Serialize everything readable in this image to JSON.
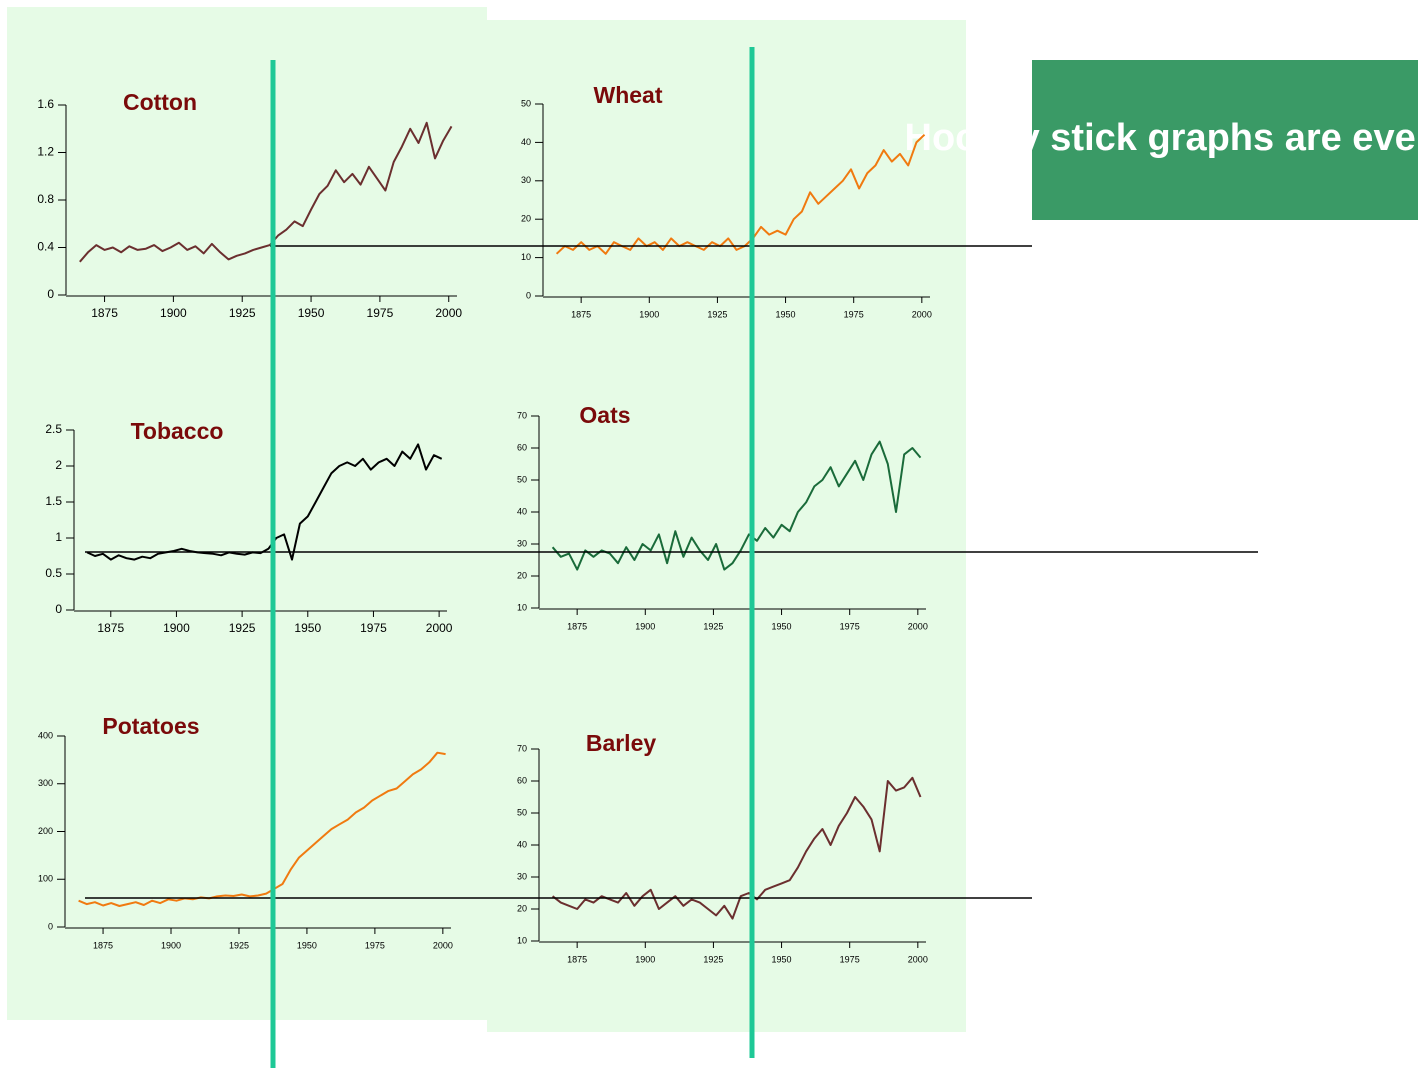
{
  "callout": "Hockey stick graphs are everywhere",
  "chart_data": [
    {
      "type": "line",
      "title": "Cotton",
      "xlim": [
        1861,
        2003
      ],
      "ylim": [
        0,
        1.6
      ],
      "xticks": [
        1875,
        1900,
        1925,
        1950,
        1975,
        2000
      ],
      "yticks": [
        0,
        0.4,
        0.8,
        1.2,
        1.6
      ],
      "x": [
        1866,
        1869,
        1872,
        1875,
        1878,
        1881,
        1884,
        1887,
        1890,
        1893,
        1896,
        1899,
        1902,
        1905,
        1908,
        1911,
        1914,
        1917,
        1920,
        1923,
        1926,
        1929,
        1932,
        1935,
        1938,
        1941,
        1944,
        1947,
        1950,
        1953,
        1956,
        1959,
        1962,
        1965,
        1968,
        1971,
        1974,
        1977,
        1980,
        1983,
        1986,
        1989,
        1992,
        1995,
        1998,
        2001
      ],
      "series": [
        {
          "color": "#6b2f2f",
          "values": [
            0.28,
            0.36,
            0.42,
            0.38,
            0.4,
            0.36,
            0.41,
            0.38,
            0.39,
            0.42,
            0.37,
            0.4,
            0.44,
            0.38,
            0.41,
            0.35,
            0.43,
            0.36,
            0.3,
            0.33,
            0.35,
            0.38,
            0.4,
            0.42,
            0.5,
            0.55,
            0.62,
            0.58,
            0.72,
            0.85,
            0.92,
            1.05,
            0.95,
            1.02,
            0.93,
            1.08,
            0.98,
            0.88,
            1.12,
            1.25,
            1.4,
            1.28,
            1.45,
            1.15,
            1.3,
            1.42
          ]
        }
      ]
    },
    {
      "type": "line",
      "title": "Wheat",
      "xlim": [
        1861,
        2003
      ],
      "ylim": [
        0,
        50
      ],
      "xticks": [
        1875,
        1900,
        1925,
        1950,
        1975,
        2000
      ],
      "yticks": [
        0,
        10,
        20,
        30,
        40,
        50
      ],
      "x": [
        1866,
        1869,
        1872,
        1875,
        1878,
        1881,
        1884,
        1887,
        1890,
        1893,
        1896,
        1899,
        1902,
        1905,
        1908,
        1911,
        1914,
        1917,
        1920,
        1923,
        1926,
        1929,
        1932,
        1935,
        1938,
        1941,
        1944,
        1947,
        1950,
        1953,
        1956,
        1959,
        1962,
        1965,
        1968,
        1971,
        1974,
        1977,
        1980,
        1983,
        1986,
        1989,
        1992,
        1995,
        1998,
        2001
      ],
      "series": [
        {
          "color": "#f07a10",
          "values": [
            11,
            13,
            12,
            14,
            12,
            13,
            11,
            14,
            13,
            12,
            15,
            13,
            14,
            12,
            15,
            13,
            14,
            13,
            12,
            14,
            13,
            15,
            12,
            13,
            15,
            18,
            16,
            17,
            16,
            20,
            22,
            27,
            24,
            26,
            28,
            30,
            33,
            28,
            32,
            34,
            38,
            35,
            37,
            34,
            40,
            42
          ]
        }
      ]
    },
    {
      "type": "line",
      "title": "Tobacco",
      "xlim": [
        1861,
        2003
      ],
      "ylim": [
        0,
        2.5
      ],
      "xticks": [
        1875,
        1900,
        1925,
        1950,
        1975,
        2000
      ],
      "yticks": [
        0,
        0.5,
        1,
        1.5,
        2,
        2.5
      ],
      "x": [
        1866,
        1869,
        1872,
        1875,
        1878,
        1881,
        1884,
        1887,
        1890,
        1893,
        1896,
        1899,
        1902,
        1905,
        1908,
        1911,
        1914,
        1917,
        1920,
        1923,
        1926,
        1929,
        1932,
        1935,
        1938,
        1941,
        1944,
        1947,
        1950,
        1953,
        1956,
        1959,
        1962,
        1965,
        1968,
        1971,
        1974,
        1977,
        1980,
        1983,
        1986,
        1989,
        1992,
        1995,
        1998,
        2001
      ],
      "series": [
        {
          "color": "#000000",
          "values": [
            0.8,
            0.75,
            0.78,
            0.7,
            0.76,
            0.72,
            0.7,
            0.74,
            0.72,
            0.78,
            0.8,
            0.82,
            0.85,
            0.82,
            0.8,
            0.79,
            0.78,
            0.76,
            0.8,
            0.78,
            0.77,
            0.8,
            0.79,
            0.85,
            1.0,
            1.05,
            0.7,
            1.2,
            1.3,
            1.5,
            1.7,
            1.9,
            2.0,
            2.05,
            2.0,
            2.1,
            1.95,
            2.05,
            2.1,
            2.0,
            2.2,
            2.1,
            2.3,
            1.95,
            2.15,
            2.1
          ]
        }
      ]
    },
    {
      "type": "line",
      "title": "Oats",
      "xlim": [
        1861,
        2003
      ],
      "ylim": [
        10,
        70
      ],
      "xticks": [
        1875,
        1900,
        1925,
        1950,
        1975,
        2000
      ],
      "yticks": [
        10,
        20,
        30,
        40,
        50,
        60,
        70
      ],
      "x": [
        1866,
        1869,
        1872,
        1875,
        1878,
        1881,
        1884,
        1887,
        1890,
        1893,
        1896,
        1899,
        1902,
        1905,
        1908,
        1911,
        1914,
        1917,
        1920,
        1923,
        1926,
        1929,
        1932,
        1935,
        1938,
        1941,
        1944,
        1947,
        1950,
        1953,
        1956,
        1959,
        1962,
        1965,
        1968,
        1971,
        1974,
        1977,
        1980,
        1983,
        1986,
        1989,
        1992,
        1995,
        1998,
        2001
      ],
      "series": [
        {
          "color": "#1a6b3a",
          "values": [
            29,
            26,
            27,
            22,
            28,
            26,
            28,
            27,
            24,
            29,
            25,
            30,
            28,
            33,
            24,
            34,
            26,
            32,
            28,
            25,
            30,
            22,
            24,
            28,
            33,
            31,
            35,
            32,
            36,
            34,
            40,
            43,
            48,
            50,
            54,
            48,
            52,
            56,
            50,
            58,
            62,
            55,
            40,
            58,
            60,
            57
          ]
        }
      ]
    },
    {
      "type": "line",
      "title": "Potatoes",
      "xlim": [
        1861,
        2003
      ],
      "ylim": [
        0,
        400
      ],
      "xticks": [
        1875,
        1900,
        1925,
        1950,
        1975,
        2000
      ],
      "yticks": [
        0,
        100,
        200,
        300,
        400
      ],
      "x": [
        1866,
        1869,
        1872,
        1875,
        1878,
        1881,
        1884,
        1887,
        1890,
        1893,
        1896,
        1899,
        1902,
        1905,
        1908,
        1911,
        1914,
        1917,
        1920,
        1923,
        1926,
        1929,
        1932,
        1935,
        1938,
        1941,
        1944,
        1947,
        1950,
        1953,
        1956,
        1959,
        1962,
        1965,
        1968,
        1971,
        1974,
        1977,
        1980,
        1983,
        1986,
        1989,
        1992,
        1995,
        1998,
        2001
      ],
      "series": [
        {
          "color": "#f07a10",
          "values": [
            55,
            48,
            52,
            45,
            50,
            44,
            48,
            52,
            46,
            55,
            50,
            58,
            55,
            60,
            58,
            62,
            60,
            64,
            66,
            65,
            68,
            64,
            66,
            70,
            80,
            90,
            120,
            145,
            160,
            175,
            190,
            205,
            215,
            225,
            240,
            250,
            265,
            275,
            285,
            290,
            305,
            320,
            330,
            345,
            365,
            362
          ]
        }
      ]
    },
    {
      "type": "line",
      "title": "Barley",
      "xlim": [
        1861,
        2003
      ],
      "ylim": [
        10,
        70
      ],
      "xticks": [
        1875,
        1900,
        1925,
        1950,
        1975,
        2000
      ],
      "yticks": [
        10,
        20,
        30,
        40,
        50,
        60,
        70
      ],
      "x": [
        1866,
        1869,
        1872,
        1875,
        1878,
        1881,
        1884,
        1887,
        1890,
        1893,
        1896,
        1899,
        1902,
        1905,
        1908,
        1911,
        1914,
        1917,
        1920,
        1923,
        1926,
        1929,
        1932,
        1935,
        1938,
        1941,
        1944,
        1947,
        1950,
        1953,
        1956,
        1959,
        1962,
        1965,
        1968,
        1971,
        1974,
        1977,
        1980,
        1983,
        1986,
        1989,
        1992,
        1995,
        1998,
        2001
      ],
      "series": [
        {
          "color": "#6b2f2f",
          "values": [
            24,
            22,
            21,
            20,
            23,
            22,
            24,
            23,
            22,
            25,
            21,
            24,
            26,
            20,
            22,
            24,
            21,
            23,
            22,
            20,
            18,
            21,
            17,
            24,
            25,
            23,
            26,
            27,
            28,
            29,
            33,
            38,
            42,
            45,
            40,
            46,
            50,
            55,
            52,
            48,
            38,
            60,
            57,
            58,
            61,
            55
          ]
        }
      ]
    }
  ]
}
